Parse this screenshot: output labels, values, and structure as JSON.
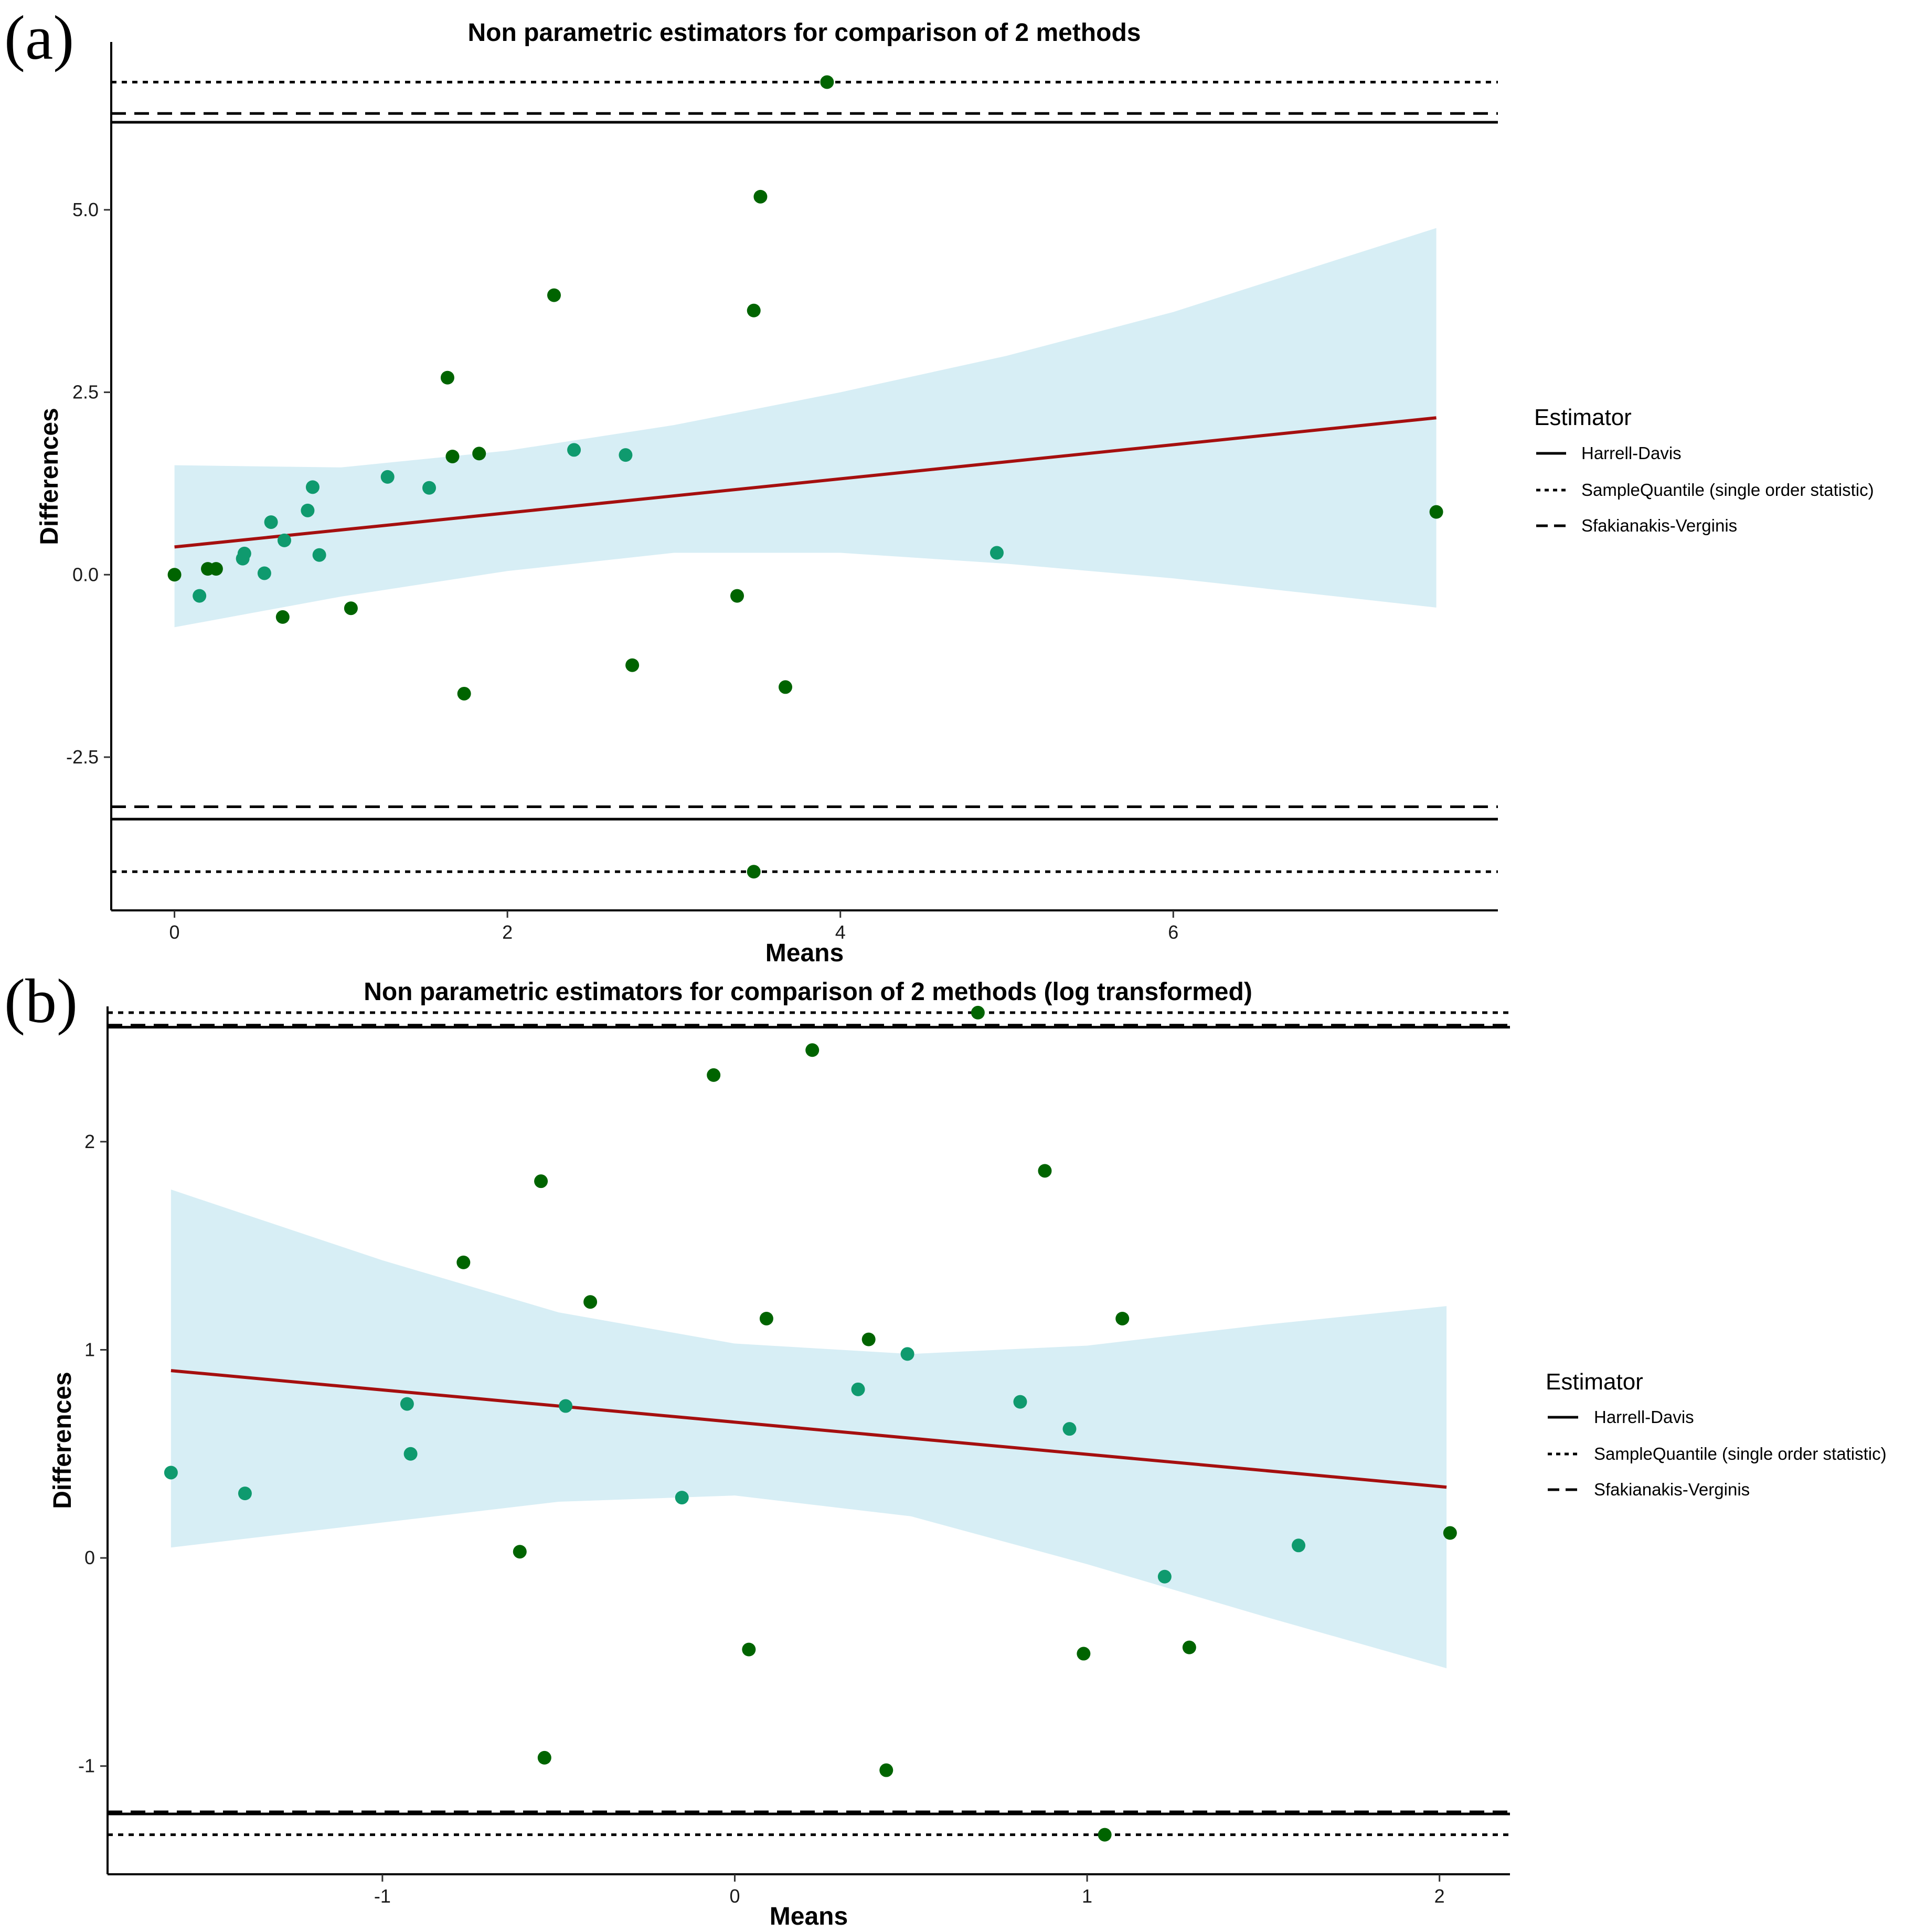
{
  "colors": {
    "band": "#d7eef5",
    "fit_line": "#a50f0f",
    "point_dark": "#006400",
    "point_teal": "#0f9a6e",
    "axis": "#000000"
  },
  "legend": {
    "title": "Estimator",
    "items": [
      {
        "label": "Harrell-Davis",
        "dash": "solid"
      },
      {
        "label": "SampleQuantile (single order statistic)",
        "dash": "dotted"
      },
      {
        "label": "Sfakianakis-Verginis",
        "dash": "dashed"
      }
    ]
  },
  "chart_data": [
    {
      "panel": "(a)",
      "type": "scatter",
      "title": "Non parametric estimators for comparison of 2 methods",
      "xlabel": "Means",
      "ylabel": "Differences",
      "xlim": [
        -0.38,
        7.95
      ],
      "ylim": [
        -4.6,
        7.3
      ],
      "xticks": [
        0,
        2,
        4,
        6
      ],
      "xtick_labels": [
        "0",
        "2",
        "4",
        "6"
      ],
      "yticks": [
        -2.5,
        0.0,
        2.5,
        5.0
      ],
      "ytick_labels": [
        "-2.5",
        "0.0",
        "2.5",
        "5.0"
      ],
      "grid": false,
      "legend_position": "right",
      "hlines": [
        {
          "estimator": "Harrell-Davis",
          "dash": "solid",
          "y": [
            6.2,
            -3.35
          ]
        },
        {
          "estimator": "SampleQuantile (single order statistic)",
          "dash": "dotted",
          "y": [
            6.75,
            -4.07
          ]
        },
        {
          "estimator": "Sfakianakis-Verginis",
          "dash": "dashed",
          "y": [
            6.32,
            -3.18
          ]
        }
      ],
      "fit_line": {
        "x": [
          0,
          7.58
        ],
        "y": [
          0.38,
          2.15
        ]
      },
      "band": {
        "x": [
          0,
          1,
          2,
          3,
          4,
          5,
          6,
          7.58
        ],
        "upper": [
          1.5,
          1.47,
          1.7,
          2.05,
          2.5,
          3.0,
          3.6,
          4.75
        ],
        "lower": [
          -0.72,
          -0.3,
          0.05,
          0.3,
          0.3,
          0.15,
          -0.05,
          -0.45
        ]
      },
      "points_dark": [
        {
          "x": 0.0,
          "y": 0.0
        },
        {
          "x": 0.2,
          "y": 0.08
        },
        {
          "x": 0.25,
          "y": 0.08
        },
        {
          "x": 0.65,
          "y": -0.58
        },
        {
          "x": 1.06,
          "y": -0.46
        },
        {
          "x": 1.64,
          "y": 2.7
        },
        {
          "x": 1.67,
          "y": 1.62
        },
        {
          "x": 1.74,
          "y": -1.63
        },
        {
          "x": 1.83,
          "y": 1.66
        },
        {
          "x": 2.28,
          "y": 3.83
        },
        {
          "x": 2.75,
          "y": -1.24
        },
        {
          "x": 3.38,
          "y": -0.29
        },
        {
          "x": 3.48,
          "y": 3.62
        },
        {
          "x": 3.48,
          "y": -4.07
        },
        {
          "x": 3.52,
          "y": 5.18
        },
        {
          "x": 3.67,
          "y": -1.54
        },
        {
          "x": 3.92,
          "y": 6.75
        },
        {
          "x": 7.58,
          "y": 0.86
        }
      ],
      "points_teal": [
        {
          "x": 0.15,
          "y": -0.29
        },
        {
          "x": 0.41,
          "y": 0.22
        },
        {
          "x": 0.42,
          "y": 0.29
        },
        {
          "x": 0.54,
          "y": 0.02
        },
        {
          "x": 0.58,
          "y": 0.72
        },
        {
          "x": 0.66,
          "y": 0.47
        },
        {
          "x": 0.8,
          "y": 0.88
        },
        {
          "x": 0.83,
          "y": 1.2
        },
        {
          "x": 0.87,
          "y": 0.27
        },
        {
          "x": 1.28,
          "y": 1.34
        },
        {
          "x": 1.53,
          "y": 1.19
        },
        {
          "x": 2.4,
          "y": 1.71
        },
        {
          "x": 2.71,
          "y": 1.64
        },
        {
          "x": 4.94,
          "y": 0.3
        }
      ]
    },
    {
      "panel": "(b)",
      "type": "scatter",
      "title": "Non parametric estimators for comparison of 2 methods (log transformed)",
      "xlabel": "Means",
      "ylabel": "Differences",
      "xlim": [
        -1.78,
        2.2
      ],
      "ylim": [
        -1.52,
        2.65
      ],
      "xticks": [
        -1,
        0,
        1,
        2
      ],
      "xtick_labels": [
        "-1",
        "0",
        "1",
        "2"
      ],
      "yticks": [
        -1,
        0,
        1,
        2
      ],
      "ytick_labels": [
        "-1",
        "0",
        "1",
        "2"
      ],
      "grid": false,
      "legend_position": "right",
      "hlines": [
        {
          "estimator": "Harrell-Davis",
          "dash": "solid",
          "y": [
            2.55,
            -1.23
          ]
        },
        {
          "estimator": "SampleQuantile (single order statistic)",
          "dash": "dotted",
          "y": [
            2.62,
            -1.33
          ]
        },
        {
          "estimator": "Sfakianakis-Verginis",
          "dash": "dashed",
          "y": [
            2.56,
            -1.22
          ]
        }
      ],
      "fit_line": {
        "x": [
          -1.6,
          2.02
        ],
        "y": [
          0.9,
          0.34
        ]
      },
      "band": {
        "x": [
          -1.6,
          -1.0,
          -0.5,
          0.0,
          0.5,
          1.0,
          1.5,
          2.02
        ],
        "upper": [
          1.77,
          1.43,
          1.18,
          1.03,
          0.98,
          1.02,
          1.12,
          1.21
        ],
        "lower": [
          0.05,
          0.17,
          0.27,
          0.3,
          0.2,
          -0.03,
          -0.28,
          -0.53
        ]
      },
      "points_dark": [
        {
          "x": -0.77,
          "y": 1.42
        },
        {
          "x": -0.55,
          "y": 1.81
        },
        {
          "x": -0.54,
          "y": -0.96
        },
        {
          "x": -0.41,
          "y": 1.23
        },
        {
          "x": -0.61,
          "y": 0.03
        },
        {
          "x": -0.06,
          "y": 2.32
        },
        {
          "x": 0.04,
          "y": -0.44
        },
        {
          "x": 0.09,
          "y": 1.15
        },
        {
          "x": 0.22,
          "y": 2.44
        },
        {
          "x": 0.38,
          "y": 1.05
        },
        {
          "x": 0.43,
          "y": -1.02
        },
        {
          "x": 0.69,
          "y": 2.62
        },
        {
          "x": 0.88,
          "y": 1.86
        },
        {
          "x": 0.99,
          "y": -0.46
        },
        {
          "x": 1.05,
          "y": -1.33
        },
        {
          "x": 1.1,
          "y": 1.15
        },
        {
          "x": 1.29,
          "y": -0.43
        },
        {
          "x": 2.03,
          "y": 0.12
        }
      ],
      "points_teal": [
        {
          "x": -1.6,
          "y": 0.41
        },
        {
          "x": -1.39,
          "y": 0.31
        },
        {
          "x": -0.93,
          "y": 0.74
        },
        {
          "x": -0.92,
          "y": 0.5
        },
        {
          "x": -0.48,
          "y": 0.73
        },
        {
          "x": -0.15,
          "y": 0.29
        },
        {
          "x": 0.35,
          "y": 0.81
        },
        {
          "x": 0.49,
          "y": 0.98
        },
        {
          "x": 0.81,
          "y": 0.75
        },
        {
          "x": 0.95,
          "y": 0.62
        },
        {
          "x": 1.22,
          "y": -0.09
        },
        {
          "x": 1.6,
          "y": 0.06
        }
      ]
    }
  ]
}
